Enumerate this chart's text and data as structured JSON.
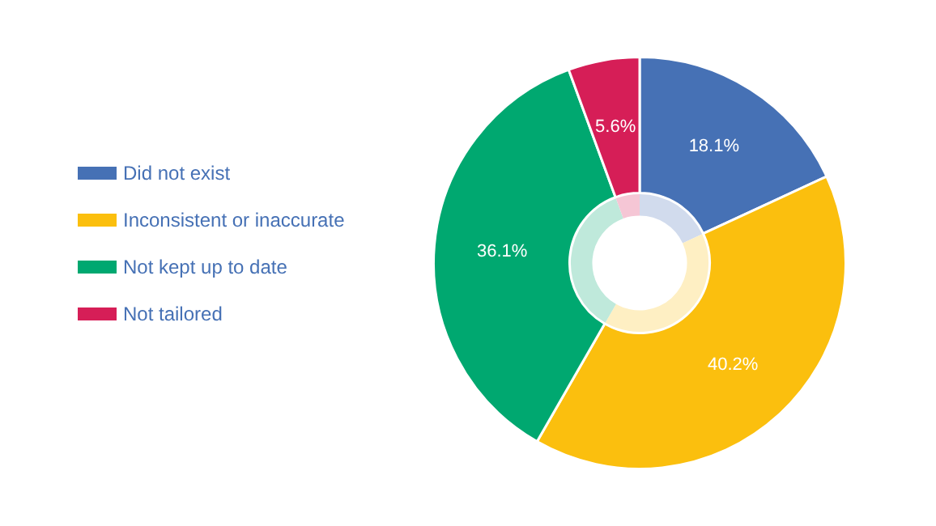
{
  "chart_data": {
    "type": "donut",
    "categories": [
      "Did not exist",
      "Inconsistent or inaccurate",
      "Not kept up to date",
      "Not tailored"
    ],
    "series": [
      {
        "values": [
          18.1,
          40.2,
          36.1,
          5.6
        ],
        "colors": [
          "#4671b5",
          "#fbbf0e",
          "#00a870",
          "#d61e57"
        ],
        "value_labels": [
          "18.1%",
          "40.2%",
          "36.1%",
          "5.6%"
        ]
      },
      {
        "values": [
          18.1,
          40.2,
          36.1,
          5.6
        ],
        "colors": [
          "#d1dbed",
          "#feefc3",
          "#bfe9db",
          "#f5c6d5"
        ]
      }
    ],
    "legend": "left"
  }
}
